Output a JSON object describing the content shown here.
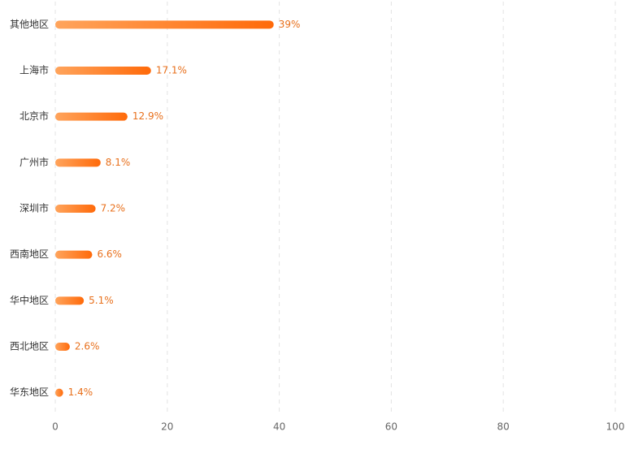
{
  "chart_data": {
    "type": "hbar",
    "categories": [
      "其他地区",
      "上海市",
      "北京市",
      "广州市",
      "深圳市",
      "西南地区",
      "华中地区",
      "西北地区",
      "华东地区"
    ],
    "values": [
      39,
      17.1,
      12.9,
      8.1,
      7.2,
      6.6,
      5.1,
      2.6,
      1.4
    ],
    "value_labels": [
      "39%",
      "17.1%",
      "12.9%",
      "8.1%",
      "7.2%",
      "6.6%",
      "5.1%",
      "2.6%",
      "1.4%"
    ],
    "gradient": [
      "#ffa45c",
      "#ff6a0a"
    ],
    "xlim": [
      0,
      100
    ],
    "xticks": [
      0,
      20,
      40,
      60,
      80,
      100
    ],
    "grid": true
  }
}
